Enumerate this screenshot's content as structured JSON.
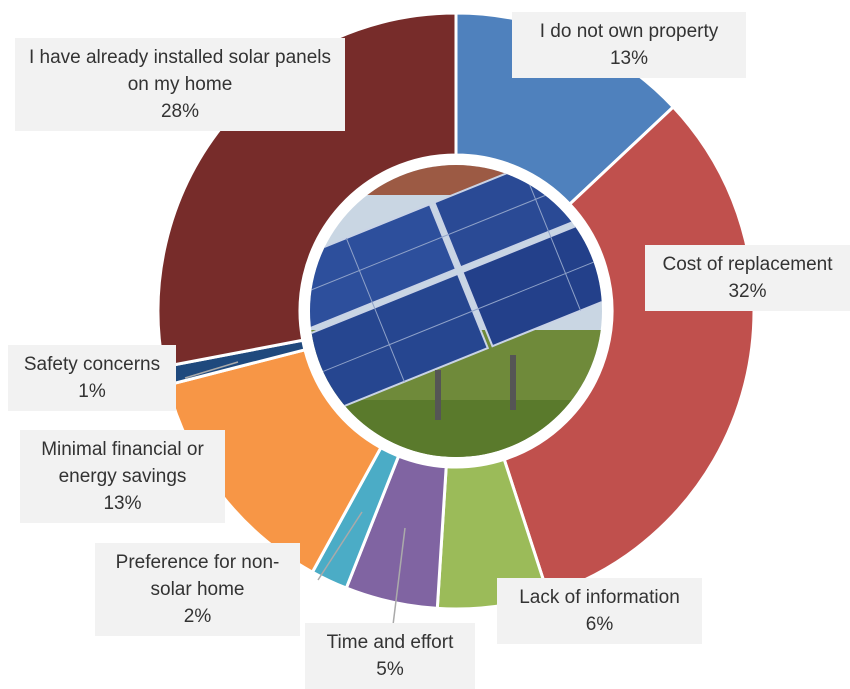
{
  "chart_data": {
    "type": "donut",
    "categories": [
      "I do not own property",
      "Cost of replacement",
      "Lack of information",
      "Time and effort",
      "Preference for non-solar home",
      "Minimal financial or energy savings",
      "Safety concerns",
      "I have already installed solar panels on my home"
    ],
    "values": [
      13,
      32,
      6,
      5,
      2,
      13,
      1,
      28
    ],
    "value_labels": [
      "13%",
      "32%",
      "6%",
      "5%",
      "2%",
      "13%",
      "1%",
      "28%"
    ],
    "colors": [
      "#4f81bd",
      "#c0504d",
      "#9bbb59",
      "#8064a2",
      "#4bacc6",
      "#f79646",
      "#1f497d",
      "#772c2a"
    ]
  }
}
